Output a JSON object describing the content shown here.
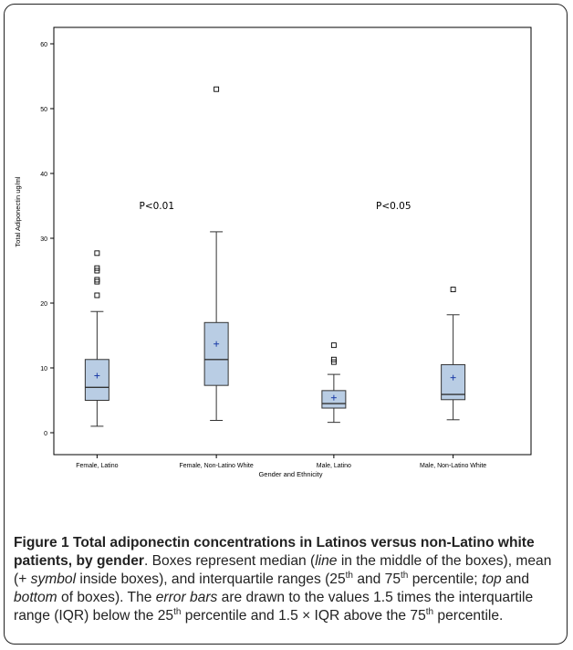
{
  "figure": {
    "caption": {
      "title": "Figure 1 Total adiponectin concentrations in Latinos versus non-Latino white patients, by gender",
      "s1": ". Boxes represent median (",
      "i1": "line",
      "s2": " in the middle of the boxes), mean (+ ",
      "i2": "symbol",
      "s3": " inside boxes), and interquartile ranges (25",
      "sup1": "th",
      "s4": " and 75",
      "sup2": "th",
      "s5": " percentile; ",
      "i3": "top",
      "s6": " and ",
      "i4": "bottom",
      "s7": " of boxes). The ",
      "i5": "error bars",
      "s8": " are drawn to the values 1.5 times the interquartile range (IQR) below the 25",
      "sup3": "th",
      "s9": " percentile and 1.5 × IQR above the 75",
      "sup4": "th",
      "s10": " percentile."
    }
  },
  "chart_data": {
    "type": "boxplot",
    "xlabel": "Gender and Ethnicity",
    "ylabel": "Total Adiponectin ug/ml",
    "ylim": [
      0,
      60
    ],
    "yticks": [
      0,
      10,
      20,
      30,
      40,
      50,
      60
    ],
    "grid": false,
    "categories": [
      "Female, Latino",
      "Female, Non-Latino White",
      "Male, Latino",
      "Male, Non-Latino White"
    ],
    "boxes": [
      {
        "category": "Female, Latino",
        "whisker_low": 1.0,
        "q1": 5.0,
        "median": 7.0,
        "q3": 11.3,
        "whisker_high": 18.7,
        "mean": 8.8,
        "outliers": [
          21.2,
          23.3,
          23.6,
          25.0,
          25.4,
          27.7
        ]
      },
      {
        "category": "Female, Non-Latino White",
        "whisker_low": 1.9,
        "q1": 7.3,
        "median": 11.3,
        "q3": 17.0,
        "whisker_high": 31.0,
        "mean": 13.7,
        "outliers": [
          53.0
        ]
      },
      {
        "category": "Male, Latino",
        "whisker_low": 1.6,
        "q1": 3.8,
        "median": 4.5,
        "q3": 6.5,
        "whisker_high": 9.0,
        "mean": 5.4,
        "outliers": [
          10.9,
          11.3,
          13.5
        ]
      },
      {
        "category": "Male, Non-Latino White",
        "whisker_low": 2.0,
        "q1": 5.1,
        "median": 5.9,
        "q3": 10.5,
        "whisker_high": 18.2,
        "mean": 8.5,
        "outliers": [
          22.1
        ]
      }
    ],
    "annotations": [
      {
        "text": "P<0.01",
        "between": [
          "Female, Latino",
          "Female, Non-Latino White"
        ],
        "y": 34.5
      },
      {
        "text": "P<0.05",
        "between": [
          "Male, Latino",
          "Male, Non-Latino White"
        ],
        "y": 34.5
      }
    ],
    "colors": {
      "box_fill": "#b9cde4",
      "box_stroke": "#333333",
      "mean_marker": "#1f3fa8",
      "outlier": "#000000",
      "axis": "#000000"
    }
  }
}
